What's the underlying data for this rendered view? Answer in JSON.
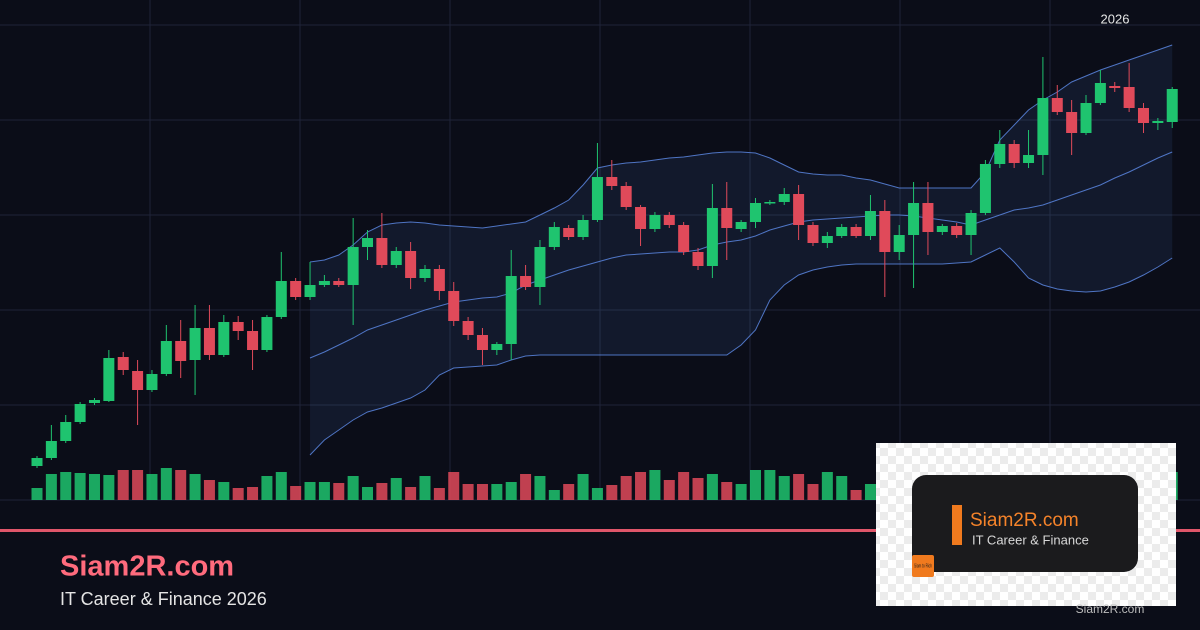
{
  "chart_data": {
    "type": "candlestick",
    "annotation": "2026",
    "ylim": [
      0,
      500
    ],
    "up_color": "#1fc46f",
    "down_color": "#e04a5a",
    "band_color": "#5b86e0",
    "open": [
      34,
      42,
      59,
      78,
      97,
      99,
      143,
      129,
      110,
      126,
      159,
      140,
      172,
      145,
      178,
      169,
      150,
      183,
      219,
      203,
      215,
      219,
      215,
      253,
      262,
      235,
      249,
      222,
      231,
      209,
      179,
      165,
      150,
      156,
      224,
      213,
      253,
      272,
      263,
      280,
      323,
      314,
      293,
      271,
      285,
      275,
      248,
      234,
      292,
      271,
      278,
      297,
      298,
      306,
      275,
      257,
      264,
      273,
      264,
      289,
      248,
      265,
      297,
      268,
      274,
      265,
      287,
      336,
      356,
      337,
      345,
      402,
      388,
      367,
      397,
      414,
      413,
      392,
      377,
      378
    ],
    "high": [
      44,
      75,
      85,
      98,
      102,
      150,
      148,
      140,
      130,
      175,
      180,
      195,
      195,
      185,
      184,
      180,
      185,
      248,
      222,
      238,
      225,
      222,
      282,
      270,
      287,
      253,
      258,
      235,
      235,
      218,
      183,
      172,
      158,
      250,
      235,
      260,
      278,
      275,
      285,
      357,
      340,
      318,
      295,
      288,
      288,
      278,
      252,
      316,
      318,
      280,
      302,
      300,
      312,
      315,
      278,
      268,
      276,
      276,
      305,
      300,
      275,
      318,
      318,
      276,
      277,
      290,
      340,
      370,
      360,
      370,
      443,
      415,
      400,
      405,
      430,
      418,
      437,
      397,
      382,
      413
    ],
    "low": [
      32,
      40,
      57,
      76,
      95,
      98,
      125,
      75,
      108,
      124,
      122,
      105,
      140,
      143,
      160,
      130,
      148,
      181,
      200,
      200,
      213,
      213,
      175,
      240,
      232,
      232,
      211,
      218,
      200,
      174,
      160,
      135,
      145,
      140,
      210,
      195,
      250,
      260,
      260,
      278,
      310,
      290,
      254,
      268,
      272,
      245,
      230,
      222,
      240,
      268,
      272,
      295,
      295,
      260,
      254,
      252,
      262,
      262,
      260,
      203,
      240,
      212,
      245,
      265,
      262,
      245,
      285,
      332,
      332,
      332,
      325,
      385,
      345,
      365,
      395,
      408,
      388,
      367,
      370,
      372
    ],
    "close": [
      42,
      59,
      78,
      96,
      100,
      142,
      130,
      110,
      126,
      159,
      139,
      172,
      145,
      178,
      169,
      150,
      183,
      219,
      203,
      215,
      219,
      215,
      253,
      262,
      235,
      249,
      222,
      231,
      209,
      179,
      165,
      150,
      156,
      224,
      213,
      253,
      273,
      263,
      280,
      323,
      314,
      293,
      271,
      285,
      275,
      248,
      234,
      292,
      272,
      278,
      297,
      298,
      306,
      275,
      257,
      264,
      273,
      264,
      289,
      248,
      265,
      297,
      268,
      274,
      265,
      287,
      336,
      356,
      337,
      345,
      402,
      388,
      367,
      397,
      417,
      412,
      392,
      377,
      379,
      411
    ],
    "volume": [
      12,
      26,
      28,
      27,
      26,
      25,
      30,
      30,
      26,
      32,
      30,
      26,
      20,
      18,
      12,
      13,
      24,
      28,
      14,
      18,
      18,
      17,
      24,
      13,
      17,
      22,
      13,
      24,
      12,
      28,
      16,
      16,
      16,
      18,
      26,
      24,
      10,
      16,
      26,
      12,
      15,
      24,
      28,
      30,
      20,
      28,
      22,
      26,
      18,
      16,
      30,
      30,
      24,
      26,
      16,
      28,
      24,
      10,
      16,
      20,
      28,
      26,
      22,
      30,
      18,
      24,
      26,
      22,
      24,
      28,
      30,
      26,
      24,
      20,
      22,
      18,
      24,
      26,
      20,
      28
    ],
    "upper_band": [
      null,
      null,
      null,
      null,
      null,
      null,
      null,
      null,
      null,
      null,
      null,
      null,
      null,
      null,
      null,
      null,
      null,
      null,
      null,
      238,
      240,
      245,
      255,
      268,
      275,
      277,
      278,
      277,
      275,
      274,
      273,
      272,
      274,
      276,
      278,
      285,
      292,
      300,
      315,
      332,
      335,
      337,
      338,
      340,
      342,
      343,
      345,
      347,
      348,
      348,
      347,
      342,
      335,
      328,
      326,
      325,
      325,
      322,
      320,
      316,
      312,
      312,
      312,
      312,
      312,
      312,
      328,
      360,
      375,
      390,
      400,
      408,
      418,
      424,
      430,
      435,
      440,
      445,
      450,
      455
    ],
    "middle_band": [
      null,
      null,
      null,
      null,
      null,
      null,
      null,
      null,
      null,
      null,
      null,
      null,
      null,
      null,
      null,
      null,
      null,
      null,
      null,
      142,
      148,
      155,
      162,
      170,
      175,
      180,
      185,
      190,
      194,
      198,
      200,
      202,
      203,
      207,
      215,
      220,
      225,
      230,
      234,
      238,
      242,
      245,
      246,
      247,
      248,
      248,
      250,
      255,
      258,
      260,
      264,
      270,
      274,
      278,
      280,
      281,
      282,
      283,
      284,
      285,
      285,
      284,
      282,
      280,
      278,
      275,
      280,
      285,
      290,
      292,
      295,
      300,
      305,
      310,
      315,
      322,
      328,
      335,
      342,
      348
    ],
    "lower_band": [
      null,
      null,
      null,
      null,
      null,
      null,
      null,
      null,
      null,
      null,
      null,
      null,
      null,
      null,
      null,
      null,
      null,
      null,
      null,
      45,
      60,
      70,
      80,
      88,
      92,
      97,
      102,
      110,
      125,
      132,
      133,
      134,
      135,
      140,
      144,
      145,
      145,
      145,
      145,
      145,
      145,
      145,
      145,
      145,
      145,
      145,
      145,
      145,
      145,
      155,
      170,
      200,
      215,
      225,
      230,
      233,
      235,
      236,
      236,
      236,
      236,
      236,
      236,
      236,
      237,
      238,
      245,
      252,
      238,
      222,
      215,
      211,
      209,
      208,
      209,
      213,
      218,
      225,
      233,
      242
    ]
  },
  "banner": {
    "title": "Siam2R.com",
    "subtitle": "IT Career & Finance 2026"
  },
  "logo": {
    "name": "Siam2R.com",
    "tagline": "IT Career & Finance",
    "badge": "Siam to Rich"
  },
  "watermark": "Siam2R.com"
}
